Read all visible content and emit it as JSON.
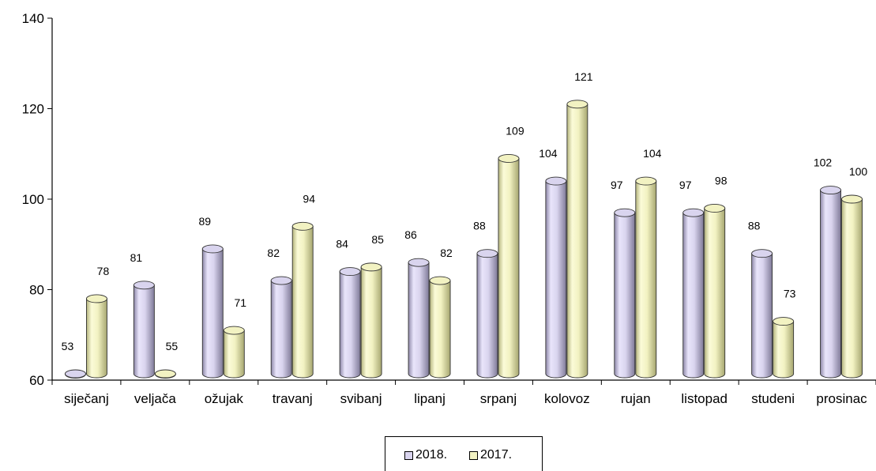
{
  "chart_data": {
    "type": "bar",
    "categories": [
      "siječanj",
      "veljača",
      "ožujak",
      "travanj",
      "svibanj",
      "lipanj",
      "srpanj",
      "kolovoz",
      "rujan",
      "listopad",
      "studeni",
      "prosinac"
    ],
    "series": [
      {
        "name": "2018.",
        "values": [
          53,
          81,
          89,
          82,
          84,
          86,
          88,
          104,
          97,
          97,
          88,
          102
        ],
        "color": "#d9d4ee"
      },
      {
        "name": "2017.",
        "values": [
          78,
          55,
          71,
          94,
          85,
          82,
          109,
          121,
          104,
          98,
          73,
          100
        ],
        "color": "#f2f2c2"
      }
    ],
    "data_labels": {
      "2018.": [
        "53",
        "81",
        "89",
        "82",
        "84",
        "86",
        "88",
        "104",
        "97",
        "97",
        "88",
        "102"
      ],
      "2017.": [
        "78",
        "55",
        "71",
        "94",
        "85",
        "82",
        "109",
        "121",
        "104",
        "98",
        "73",
        "100"
      ]
    },
    "y_ticks": [
      "60",
      "80",
      "100",
      "120",
      "140"
    ],
    "ylim": [
      60,
      140
    ],
    "grid": false,
    "legend_position": "bottom",
    "bar_shape": "cylinder"
  },
  "legend": {
    "items": [
      {
        "label": "2018.",
        "color": "#d9d4ee"
      },
      {
        "label": "2017.",
        "color": "#f2f2c2"
      }
    ]
  }
}
